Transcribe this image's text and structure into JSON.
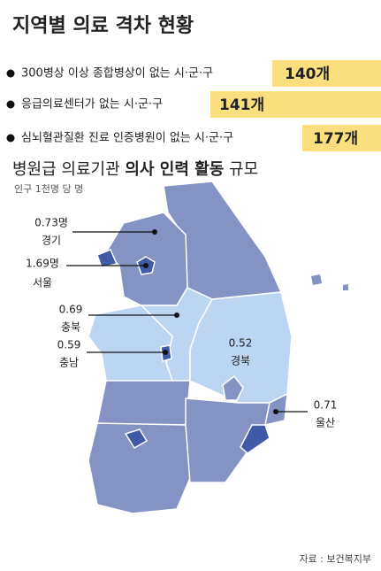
{
  "header": {
    "title": "지역별 의료 격차 현황"
  },
  "bullets": [
    {
      "text": "300병상 이상 종합병상이 없는 시·군·구",
      "count": "140개"
    },
    {
      "text": "응급의료센터가 없는 시·군·구",
      "count": "141개"
    },
    {
      "text": "심뇌혈관질환 진료 인증병원이 없는 시·군·구",
      "count": "177개"
    }
  ],
  "map": {
    "title": {
      "before": "병원급 의료기관 ",
      "bold": "의사 인력 활동",
      "after": " 규모"
    },
    "unit": "인구 1천명 당 명",
    "regions": [
      {
        "value": "0.73명",
        "name": "경기"
      },
      {
        "value": "1.69명",
        "name": "서울"
      },
      {
        "value": "0.69",
        "name": "충북"
      },
      {
        "value": "0.59",
        "name": "충남"
      },
      {
        "value": "0.52",
        "name": "경북"
      },
      {
        "value": "0.71",
        "name": "울산"
      }
    ]
  },
  "source": "자료 : 보건복지부"
}
